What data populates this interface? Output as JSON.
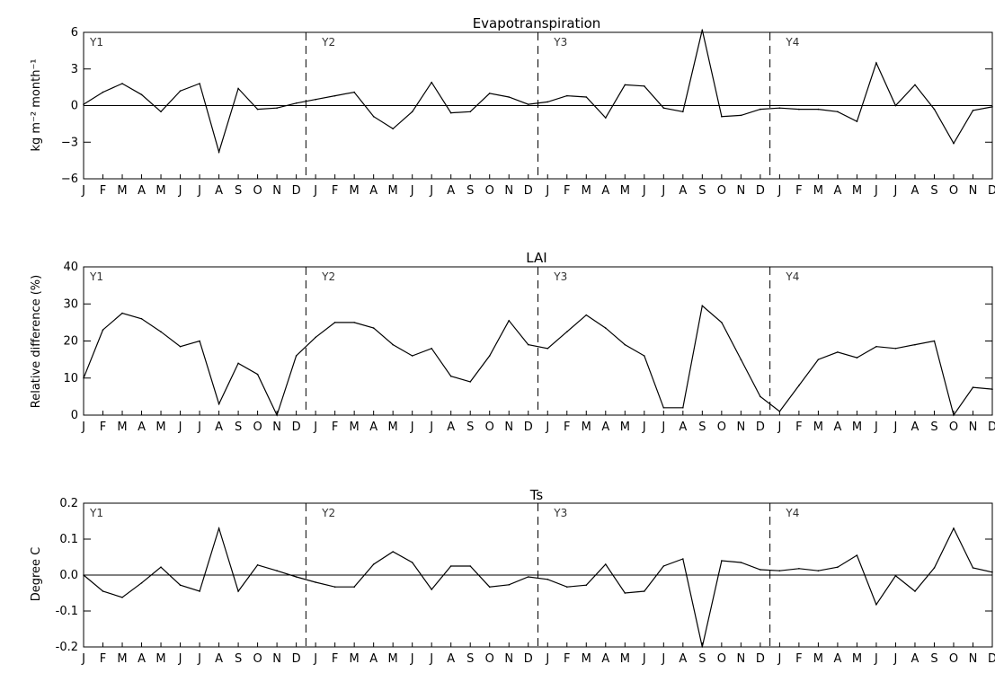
{
  "chart_data": [
    {
      "type": "line",
      "title": "Evapotranspiration",
      "ylabel": "kg m⁻² month⁻¹",
      "ylim": [
        -6,
        6
      ],
      "yticks": [
        "6",
        "3",
        "0",
        "−3",
        "−6"
      ],
      "ytick_values": [
        6,
        3,
        0,
        -3,
        -6
      ],
      "zero_line": true,
      "years": [
        "Y1",
        "Y2",
        "Y3",
        "Y4"
      ],
      "months": [
        "J",
        "F",
        "M",
        "A",
        "M",
        "J",
        "J",
        "A",
        "S",
        "O",
        "N",
        "D",
        "J",
        "F",
        "M",
        "A",
        "M",
        "J",
        "J",
        "A",
        "S",
        "O",
        "N",
        "D",
        "J",
        "F",
        "M",
        "A",
        "M",
        "J",
        "J",
        "A",
        "S",
        "O",
        "N",
        "D",
        "J",
        "F",
        "M",
        "A",
        "M",
        "J",
        "J",
        "A",
        "S",
        "O",
        "N",
        "D"
      ],
      "values": [
        0.1,
        1.1,
        1.8,
        0.9,
        -0.5,
        1.2,
        1.8,
        -3.8,
        1.4,
        -0.3,
        -0.2,
        0.2,
        0.5,
        0.8,
        1.1,
        -0.9,
        -1.9,
        -0.5,
        1.9,
        -0.6,
        -0.5,
        1.0,
        0.7,
        0.1,
        0.3,
        0.8,
        0.7,
        -1.0,
        1.7,
        1.6,
        -0.2,
        -0.5,
        6.2,
        -0.9,
        -0.8,
        -0.3,
        -0.2,
        -0.3,
        -0.3,
        -0.5,
        -1.3,
        3.5,
        0.0,
        1.7,
        -0.3,
        -3.1,
        -0.4,
        -0.1
      ]
    },
    {
      "type": "line",
      "title": "LAI",
      "ylabel": "Relative difference (%)",
      "ylim": [
        0,
        40
      ],
      "yticks": [
        "40",
        "30",
        "20",
        "10",
        "0"
      ],
      "ytick_values": [
        40,
        30,
        20,
        10,
        0
      ],
      "zero_line": false,
      "years": [
        "Y1",
        "Y2",
        "Y3",
        "Y4"
      ],
      "months": [
        "J",
        "F",
        "M",
        "A",
        "M",
        "J",
        "J",
        "A",
        "S",
        "O",
        "N",
        "D",
        "J",
        "F",
        "M",
        "A",
        "M",
        "J",
        "J",
        "A",
        "S",
        "O",
        "N",
        "D",
        "J",
        "F",
        "M",
        "A",
        "M",
        "J",
        "J",
        "A",
        "S",
        "O",
        "N",
        "D",
        "J",
        "F",
        "M",
        "A",
        "M",
        "J",
        "J",
        "A",
        "S",
        "O",
        "N",
        "D"
      ],
      "values": [
        10,
        23,
        27.5,
        26,
        22.5,
        18.5,
        20,
        3,
        14,
        11,
        0,
        16,
        21,
        25,
        25,
        23.5,
        19,
        16,
        18,
        10.5,
        9,
        16,
        25.5,
        19,
        18,
        22.5,
        27,
        23.5,
        19,
        16,
        2,
        2,
        29.5,
        25,
        15,
        5,
        1,
        8,
        15,
        17,
        15.5,
        18.5,
        18,
        19,
        20,
        0,
        7.5,
        7
      ]
    },
    {
      "type": "line",
      "title": "Ts",
      "ylabel": "Degree C",
      "ylim": [
        -0.2,
        0.2
      ],
      "yticks": [
        "0.2",
        "0.1",
        "0.0",
        "-0.1",
        "-0.2"
      ],
      "ytick_values": [
        0.2,
        0.1,
        0.0,
        -0.1,
        -0.2
      ],
      "zero_line": true,
      "years": [
        "Y1",
        "Y2",
        "Y3",
        "Y4"
      ],
      "months": [
        "J",
        "F",
        "M",
        "A",
        "M",
        "J",
        "J",
        "A",
        "S",
        "O",
        "N",
        "D",
        "J",
        "F",
        "M",
        "A",
        "M",
        "J",
        "J",
        "A",
        "S",
        "O",
        "N",
        "D",
        "J",
        "F",
        "M",
        "A",
        "M",
        "J",
        "J",
        "A",
        "S",
        "O",
        "N",
        "D",
        "J",
        "F",
        "M",
        "A",
        "M",
        "J",
        "J",
        "A",
        "S",
        "O",
        "N",
        "D"
      ],
      "values": [
        0.0,
        -0.045,
        -0.062,
        -0.022,
        0.022,
        -0.028,
        -0.045,
        0.13,
        -0.045,
        0.028,
        0.012,
        -0.005,
        -0.02,
        -0.033,
        -0.033,
        0.03,
        0.065,
        0.035,
        -0.04,
        0.025,
        0.025,
        -0.033,
        -0.027,
        -0.005,
        -0.012,
        -0.033,
        -0.028,
        0.03,
        -0.05,
        -0.045,
        0.025,
        0.045,
        -0.2,
        0.04,
        0.035,
        0.015,
        0.012,
        0.018,
        0.012,
        0.022,
        0.055,
        -0.082,
        -0.002,
        -0.045,
        0.02,
        0.13,
        0.02,
        0.008
      ]
    }
  ]
}
